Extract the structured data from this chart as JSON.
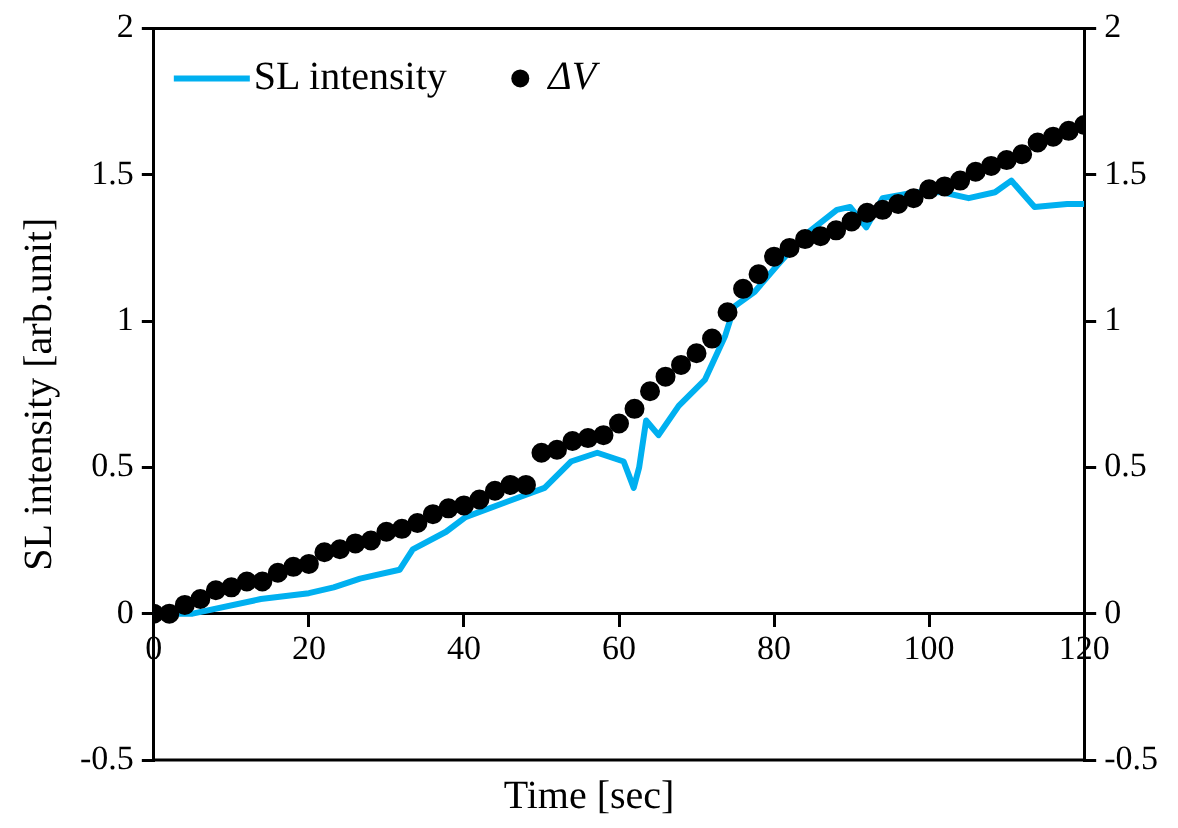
{
  "chart_data": {
    "type": "line",
    "xlabel": "Time [sec]",
    "ylabel": "SL intensity [arb.unit]",
    "xlim": [
      0,
      120
    ],
    "xticks": [
      0,
      20,
      40,
      60,
      80,
      100,
      120
    ],
    "ylim": [
      -0.5,
      2
    ],
    "yticks": [
      -0.5,
      0,
      0.5,
      1,
      1.5,
      2
    ],
    "y2lim": [
      -0.5,
      2
    ],
    "y2ticks": [
      -0.5,
      0,
      0.5,
      1,
      1.5,
      2
    ],
    "grid": false,
    "legend": "top left",
    "series": [
      {
        "name": "SL intensity",
        "marker": "none",
        "color": "#00b0f0",
        "x": [
          0,
          5,
          13.8,
          20,
          23.2,
          26.6,
          31.7,
          33.4,
          37.7,
          40.2,
          45.3,
          50.4,
          53.8,
          57.2,
          60.6,
          61.9,
          62.6,
          63.5,
          65.1,
          67.7,
          71.1,
          73.7,
          74.9,
          77.5,
          80.4,
          83.8,
          88.1,
          89.8,
          91.9,
          94,
          98.3,
          101.7,
          105.1,
          108.5,
          110.6,
          113.6,
          117.8,
          120
        ],
        "values": [
          0,
          0,
          0.05,
          0.07,
          0.09,
          0.12,
          0.15,
          0.22,
          0.28,
          0.33,
          0.38,
          0.43,
          0.52,
          0.55,
          0.52,
          0.43,
          0.5,
          0.66,
          0.61,
          0.71,
          0.8,
          0.95,
          1.05,
          1.1,
          1.19,
          1.29,
          1.38,
          1.39,
          1.32,
          1.42,
          1.44,
          1.44,
          1.42,
          1.44,
          1.48,
          1.39,
          1.4,
          1.4
        ]
      },
      {
        "name": "ΔV",
        "type": "scatter",
        "marker": "circle",
        "color": "#000000",
        "x": [
          0,
          2,
          4,
          6,
          8,
          10,
          12,
          14,
          16,
          18,
          20,
          22,
          24,
          26,
          28,
          30,
          32,
          34,
          36,
          38,
          40,
          42,
          44,
          46,
          48,
          50,
          52,
          54,
          56,
          58,
          60,
          62,
          64,
          66,
          68,
          70,
          72,
          74,
          76,
          78,
          80,
          82,
          84,
          86,
          88,
          90,
          92,
          94,
          96,
          98,
          100,
          102,
          104,
          106,
          108,
          110,
          112,
          114,
          116,
          118,
          120
        ],
        "values": [
          0,
          0,
          0.03,
          0.05,
          0.08,
          0.09,
          0.11,
          0.11,
          0.14,
          0.16,
          0.17,
          0.21,
          0.22,
          0.24,
          0.25,
          0.28,
          0.29,
          0.31,
          0.34,
          0.36,
          0.37,
          0.39,
          0.42,
          0.44,
          0.44,
          0.55,
          0.56,
          0.59,
          0.6,
          0.61,
          0.65,
          0.7,
          0.76,
          0.81,
          0.85,
          0.89,
          0.94,
          1.03,
          1.11,
          1.16,
          1.22,
          1.25,
          1.28,
          1.29,
          1.31,
          1.34,
          1.37,
          1.38,
          1.4,
          1.42,
          1.45,
          1.46,
          1.48,
          1.51,
          1.53,
          1.55,
          1.57,
          1.61,
          1.63,
          1.65,
          1.67
        ]
      }
    ]
  }
}
